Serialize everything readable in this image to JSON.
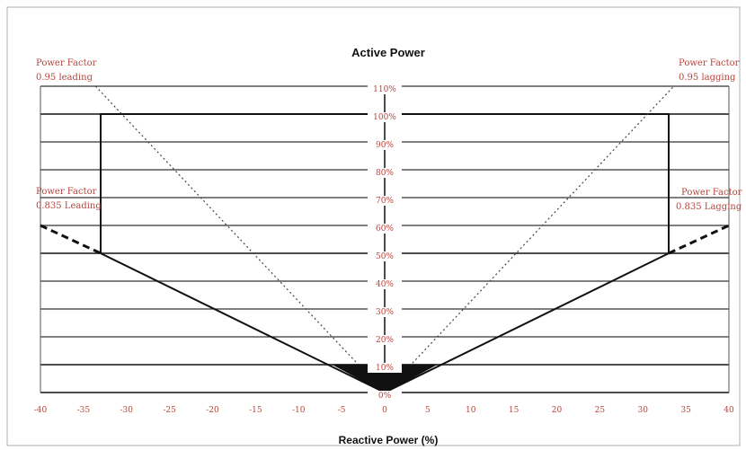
{
  "chart_data": {
    "type": "line",
    "title": "Active Power",
    "xlabel": "Reactive Power (%)",
    "ylabel": "",
    "xlim": [
      -40,
      40
    ],
    "ylim": [
      0,
      110
    ],
    "x_ticks": [
      -40,
      -35,
      -30,
      -25,
      -20,
      -15,
      -10,
      -5,
      0,
      5,
      10,
      15,
      20,
      25,
      30,
      35,
      40
    ],
    "y_ticks": [
      0,
      10,
      20,
      30,
      40,
      50,
      60,
      70,
      80,
      90,
      100,
      110
    ],
    "x_tick_labels": [
      "-40",
      "-35",
      "-30",
      "-25",
      "-20",
      "-15",
      "-10",
      "-5",
      "0",
      "5",
      "10",
      "15",
      "20",
      "25",
      "30",
      "35",
      "40"
    ],
    "y_tick_labels": [
      "0%",
      "10%",
      "20%",
      "30%",
      "40%",
      "50%",
      "60%",
      "70%",
      "80%",
      "90%",
      "100%",
      "110%"
    ],
    "grid": true,
    "colors": {
      "tick_text": "#b8433c",
      "lines": "#111111",
      "grid": "#333333"
    },
    "series": [
      {
        "style": "solid-polygon",
        "points": [
          [
            -33,
            50
          ],
          [
            -33,
            100
          ],
          [
            33,
            100
          ],
          [
            33,
            50
          ]
        ]
      },
      {
        "style": "solid",
        "points": [
          [
            -33,
            50
          ],
          [
            0,
            0
          ],
          [
            33,
            50
          ]
        ]
      },
      {
        "style": "dashed-thick",
        "points": [
          [
            -40,
            60
          ],
          [
            -33,
            50
          ]
        ]
      },
      {
        "style": "dashed-thick",
        "points": [
          [
            33,
            50
          ],
          [
            40,
            60
          ]
        ]
      },
      {
        "style": "dotted",
        "points": [
          [
            -33.6,
            110
          ],
          [
            0,
            0
          ]
        ]
      },
      {
        "style": "dotted",
        "points": [
          [
            0,
            0
          ],
          [
            33.6,
            110
          ]
        ]
      },
      {
        "style": "filled",
        "points": [
          [
            -6,
            10
          ],
          [
            6,
            10
          ],
          [
            0,
            0
          ]
        ]
      }
    ],
    "annotations": [
      {
        "lines": [
          "Power Factor",
          "0.95 leading"
        ],
        "position": "top-left"
      },
      {
        "lines": [
          "Power Factor",
          "0.95 lagging"
        ],
        "position": "top-right"
      },
      {
        "lines": [
          "Power Factor",
          "0.835 Leading"
        ],
        "position": "middle-left"
      },
      {
        "lines": [
          "Power Factor",
          "0.835 Lagging"
        ],
        "position": "middle-right"
      }
    ]
  }
}
